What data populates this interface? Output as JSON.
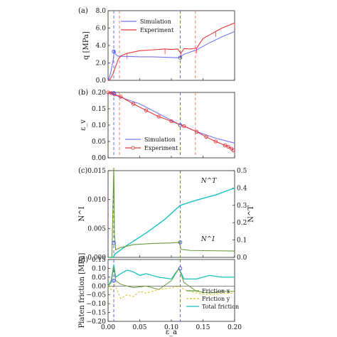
{
  "panels": {
    "a": {
      "label": "(a)",
      "ylabel": "q [MPa]",
      "legend": [
        "Simulation",
        "Experiment"
      ]
    },
    "b": {
      "label": "(b)",
      "ylabel": "ε_v",
      "legend": [
        "Simulation",
        "Experiment"
      ]
    },
    "c": {
      "label": "(c)",
      "ylabel_left": "N^I",
      "ylabel_right": "N^T",
      "ann_T": "N^T",
      "ann_I": "N^I"
    },
    "d": {
      "label": "(d)",
      "ylabel": "Platen friction [MPa]",
      "xlabel": "ε_a",
      "legend": [
        "Friction x",
        "Friction y",
        "Total friction"
      ]
    }
  },
  "colors": {
    "simulation": "#7777ee",
    "experiment": "#e8353a",
    "friction_x": "#6c9a3c",
    "friction_y": "#d4c22a",
    "total": "#19c0c0",
    "dashed_blue": "#4a55ee",
    "dashed_red": "#f07060"
  },
  "chart_data": [
    {
      "type": "line",
      "panel": "a",
      "ylabel": "q [MPa]",
      "xlim": [
        0,
        0.2
      ],
      "ylim": [
        0,
        8
      ],
      "yticks": [
        "0.0",
        "2.0",
        "4.0",
        "6.0",
        "8.0"
      ],
      "series": [
        {
          "name": "Simulation",
          "x": [
            0,
            0.004,
            0.008,
            0.01,
            0.012,
            0.015,
            0.02,
            0.03,
            0.05,
            0.07,
            0.09,
            0.11,
            0.112,
            0.12,
            0.14,
            0.16,
            0.18,
            0.2
          ],
          "y": [
            0,
            0.8,
            2.3,
            3.5,
            3.0,
            2.8,
            2.75,
            2.75,
            2.7,
            2.7,
            2.65,
            2.6,
            2.6,
            3.0,
            3.5,
            4.3,
            5.0,
            5.6
          ]
        },
        {
          "name": "Experiment",
          "x": [
            0,
            0.004,
            0.008,
            0.012,
            0.016,
            0.02,
            0.03,
            0.05,
            0.07,
            0.09,
            0.1,
            0.11,
            0.115,
            0.12,
            0.13,
            0.14,
            0.15,
            0.16,
            0.17,
            0.18,
            0.19,
            0.2
          ],
          "y": [
            0,
            0.2,
            0.8,
            1.6,
            2.4,
            2.8,
            3.1,
            3.4,
            3.5,
            3.6,
            3.55,
            3.6,
            3.1,
            3.65,
            3.6,
            3.7,
            4.8,
            5.2,
            5.6,
            6.0,
            6.3,
            6.6
          ]
        }
      ],
      "vlines_blue": [
        0.009,
        0.114
      ],
      "vlines_red": [
        0.018,
        0.138
      ],
      "markers": [
        {
          "x": 0.009,
          "y": 3.3
        },
        {
          "x": 0.114,
          "y": 2.6
        }
      ]
    },
    {
      "type": "line",
      "panel": "b",
      "ylabel": "ε_v",
      "xlim": [
        0,
        0.2
      ],
      "ylim": [
        0.2,
        0.0
      ],
      "yticks": [
        "0.00",
        "0.05",
        "0.10",
        "0.15",
        "0.20"
      ],
      "series": [
        {
          "name": "Simulation",
          "x": [
            0,
            0.02,
            0.05,
            0.08,
            0.11,
            0.14,
            0.17,
            0.2
          ],
          "y": [
            0,
            0.015,
            0.035,
            0.065,
            0.095,
            0.12,
            0.14,
            0.155
          ]
        },
        {
          "name": "Experiment",
          "x": [
            0,
            0.005,
            0.01,
            0.02,
            0.04,
            0.06,
            0.08,
            0.1,
            0.12,
            0.14,
            0.155,
            0.17,
            0.185,
            0.19,
            0.195,
            0.198
          ],
          "y": [
            0,
            0.002,
            0.006,
            0.013,
            0.035,
            0.055,
            0.074,
            0.088,
            0.103,
            0.12,
            0.136,
            0.15,
            0.162,
            0.166,
            0.172,
            0.177
          ]
        }
      ],
      "vlines_blue": [
        0.009,
        0.114
      ],
      "vlines_red": [
        0.018,
        0.138
      ],
      "markers": [
        {
          "x": 0.009,
          "y": 0.002
        },
        {
          "x": 0.114,
          "y": 0.1
        }
      ]
    },
    {
      "type": "line",
      "panel": "c",
      "ylabel_left": "N^I",
      "ylabel_right": "N^T",
      "xlim": [
        0,
        0.2
      ],
      "ylim_left": [
        0,
        0.015
      ],
      "ylim_right": [
        0,
        0.5
      ],
      "yticks_left": [
        "0.000",
        "0.005",
        "0.010",
        "0.015"
      ],
      "yticks_right": [
        "0.0",
        "0.1",
        "0.2",
        "0.3",
        "0.4",
        "0.5"
      ],
      "series": [
        {
          "name": "N^T",
          "axis": "right",
          "x": [
            0,
            0.008,
            0.011,
            0.03,
            0.06,
            0.09,
            0.114,
            0.14,
            0.17,
            0.2
          ],
          "y": [
            0,
            0,
            0.02,
            0.07,
            0.14,
            0.22,
            0.3,
            0.33,
            0.36,
            0.4
          ]
        },
        {
          "name": "N^I",
          "axis": "left",
          "x": [
            0,
            0.006,
            0.009,
            0.0095,
            0.01,
            0.012,
            0.02,
            0.04,
            0.07,
            0.1,
            0.113,
            0.115,
            0.13,
            0.2
          ],
          "y": [
            0,
            0,
            0.0155,
            0.012,
            0.004,
            0.0013,
            0.0017,
            0.0022,
            0.0024,
            0.0025,
            0.0026,
            0.0014,
            0.0012,
            0.0011
          ]
        }
      ],
      "vlines_blue": [
        0.009,
        0.114
      ],
      "markers": [
        {
          "x": 0.009,
          "y": 0.0025
        },
        {
          "x": 0.114,
          "y": 0.0026
        }
      ]
    },
    {
      "type": "line",
      "panel": "d",
      "ylabel": "Platen friction [MPa]",
      "xlabel": "ε_a",
      "xlim": [
        0,
        0.2
      ],
      "ylim": [
        -0.2,
        0.15
      ],
      "xticks": [
        "0.00",
        "0.05",
        "0.10",
        "0.15",
        "0.20"
      ],
      "yticks": [
        "−0.20",
        "−0.15",
        "−0.10",
        "−0.05",
        "0.00",
        "0.05",
        "0.10",
        "0.15"
      ],
      "series": [
        {
          "name": "Friction x",
          "x": [
            0,
            0.005,
            0.009,
            0.012,
            0.02,
            0.04,
            0.06,
            0.08,
            0.1,
            0.112,
            0.12,
            0.14,
            0.16,
            0.18,
            0.2
          ],
          "y": [
            0,
            0.02,
            0.11,
            0.03,
            0.01,
            -0.01,
            0.0,
            -0.02,
            0.03,
            0.1,
            0.02,
            -0.03,
            -0.04,
            -0.03,
            -0.03
          ]
        },
        {
          "name": "Friction y",
          "x": [
            0,
            0.005,
            0.01,
            0.02,
            0.03,
            0.04,
            0.05,
            0.06,
            0.08,
            0.1,
            0.112,
            0.12,
            0.14,
            0.16,
            0.18,
            0.2
          ],
          "y": [
            0,
            -0.02,
            0.01,
            -0.07,
            -0.05,
            -0.06,
            -0.03,
            -0.04,
            -0.02,
            -0.01,
            0.0,
            -0.02,
            -0.04,
            -0.05,
            -0.04,
            -0.04
          ]
        },
        {
          "name": "Total friction",
          "x": [
            0,
            0.005,
            0.009,
            0.012,
            0.02,
            0.03,
            0.04,
            0.05,
            0.06,
            0.08,
            0.1,
            0.112,
            0.12,
            0.14,
            0.16,
            0.18,
            0.2
          ],
          "y": [
            0,
            0.03,
            0.12,
            0.05,
            0.07,
            0.09,
            0.08,
            0.06,
            0.07,
            0.05,
            0.04,
            0.1,
            0.04,
            0.04,
            0.06,
            0.05,
            0.05
          ]
        }
      ],
      "vlines_blue": [
        0.009,
        0.114
      ],
      "markers": [
        {
          "x": 0.009,
          "y": 0.03
        },
        {
          "x": 0.114,
          "y": 0.1
        }
      ]
    }
  ]
}
